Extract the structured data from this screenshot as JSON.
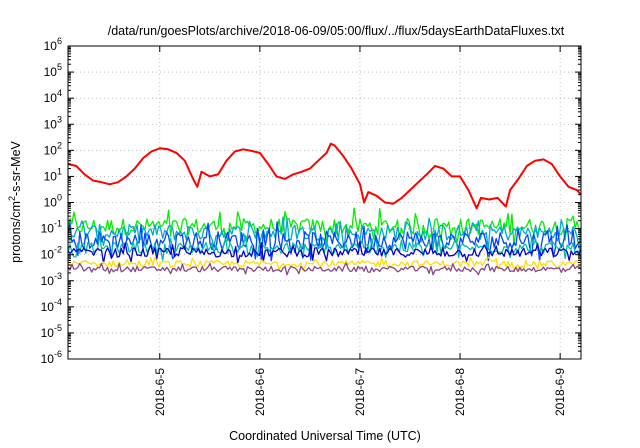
{
  "chart_data": {
    "type": "line",
    "title": "/data/run/goesPlots/archive/2018-06-09/05:00/flux/../flux/5daysEarthDataFluxes.txt",
    "xlabel": "Coordinated Universal Time (UTC)",
    "ylabel_main": "protons/cm",
    "ylabel_sup": "2",
    "ylabel_tail": "-s-sr-MeV",
    "y_scale": "log",
    "ylim": [
      1e-06,
      1000000.0
    ],
    "y_ticks": [
      {
        "base": "10",
        "exp": "-6"
      },
      {
        "base": "10",
        "exp": "-5"
      },
      {
        "base": "10",
        "exp": "-4"
      },
      {
        "base": "10",
        "exp": "-3"
      },
      {
        "base": "10",
        "exp": "-2"
      },
      {
        "base": "10",
        "exp": "-1"
      },
      {
        "base": "10",
        "exp": "0"
      },
      {
        "base": "10",
        "exp": "1"
      },
      {
        "base": "10",
        "exp": "2"
      },
      {
        "base": "10",
        "exp": "3"
      },
      {
        "base": "10",
        "exp": "4"
      },
      {
        "base": "10",
        "exp": "5"
      },
      {
        "base": "10",
        "exp": "6"
      }
    ],
    "xlim": [
      "2018-06-04 02:00",
      "2018-06-09 05:00"
    ],
    "x_ticks": [
      "2018-6-5",
      "2018-6-6",
      "2018-6-7",
      "2018-6-8",
      "2018-6-9"
    ],
    "x_tick_dates": [
      "2018-06-05 00:00",
      "2018-06-06 00:00",
      "2018-06-07 00:00",
      "2018-06-08 00:00",
      "2018-06-09 00:00"
    ],
    "grid": true,
    "legend": "none",
    "series": [
      {
        "color": "#ff0000",
        "values": [
          [
            "2018-06-04 02:00",
            30
          ],
          [
            "2018-06-04 04:00",
            25
          ],
          [
            "2018-06-04 06:00",
            12
          ],
          [
            "2018-06-04 08:00",
            7
          ],
          [
            "2018-06-04 10:00",
            6
          ],
          [
            "2018-06-04 12:00",
            5
          ],
          [
            "2018-06-04 14:00",
            6
          ],
          [
            "2018-06-04 16:00",
            10
          ],
          [
            "2018-06-04 18:00",
            20
          ],
          [
            "2018-06-04 20:00",
            50
          ],
          [
            "2018-06-04 22:00",
            90
          ],
          [
            "2018-06-05 00:00",
            120
          ],
          [
            "2018-06-05 02:00",
            110
          ],
          [
            "2018-06-05 04:00",
            80
          ],
          [
            "2018-06-05 06:00",
            40
          ],
          [
            "2018-06-05 08:00",
            8
          ],
          [
            "2018-06-05 09:00",
            4
          ],
          [
            "2018-06-05 10:00",
            15
          ],
          [
            "2018-06-05 12:00",
            10
          ],
          [
            "2018-06-05 14:00",
            12
          ],
          [
            "2018-06-05 16:00",
            40
          ],
          [
            "2018-06-05 18:00",
            90
          ],
          [
            "2018-06-05 20:00",
            110
          ],
          [
            "2018-06-05 22:00",
            95
          ],
          [
            "2018-06-06 00:00",
            80
          ],
          [
            "2018-06-06 02:00",
            30
          ],
          [
            "2018-06-06 04:00",
            10
          ],
          [
            "2018-06-06 06:00",
            8
          ],
          [
            "2018-06-06 08:00",
            12
          ],
          [
            "2018-06-06 10:00",
            15
          ],
          [
            "2018-06-06 12:00",
            20
          ],
          [
            "2018-06-06 14:00",
            40
          ],
          [
            "2018-06-06 16:00",
            80
          ],
          [
            "2018-06-06 17:00",
            180
          ],
          [
            "2018-06-06 18:00",
            150
          ],
          [
            "2018-06-06 20:00",
            60
          ],
          [
            "2018-06-06 22:00",
            20
          ],
          [
            "2018-06-07 00:00",
            5
          ],
          [
            "2018-06-07 01:00",
            1
          ],
          [
            "2018-06-07 02:00",
            2.5
          ],
          [
            "2018-06-07 04:00",
            1.8
          ],
          [
            "2018-06-07 06:00",
            1
          ],
          [
            "2018-06-07 08:00",
            0.9
          ],
          [
            "2018-06-07 10:00",
            1.5
          ],
          [
            "2018-06-07 12:00",
            3
          ],
          [
            "2018-06-07 14:00",
            6
          ],
          [
            "2018-06-07 16:00",
            12
          ],
          [
            "2018-06-07 18:00",
            25
          ],
          [
            "2018-06-07 20:00",
            20
          ],
          [
            "2018-06-07 22:00",
            10
          ],
          [
            "2018-06-08 00:00",
            10
          ],
          [
            "2018-06-08 02:00",
            3
          ],
          [
            "2018-06-08 04:00",
            0.6
          ],
          [
            "2018-06-08 05:00",
            1.5
          ],
          [
            "2018-06-08 07:00",
            1.3
          ],
          [
            "2018-06-08 09:00",
            1.5
          ],
          [
            "2018-06-08 11:00",
            0.7
          ],
          [
            "2018-06-08 12:00",
            3
          ],
          [
            "2018-06-08 14:00",
            8
          ],
          [
            "2018-06-08 16:00",
            25
          ],
          [
            "2018-06-08 18:00",
            40
          ],
          [
            "2018-06-08 20:00",
            45
          ],
          [
            "2018-06-08 22:00",
            30
          ],
          [
            "2018-06-09 00:00",
            10
          ],
          [
            "2018-06-09 02:00",
            4
          ],
          [
            "2018-06-09 04:00",
            3
          ],
          [
            "2018-06-09 05:00",
            2
          ]
        ]
      },
      {
        "color": "#00ee00",
        "level": 0.12,
        "noise": 0.9
      },
      {
        "color": "#00aacc",
        "level": 0.07,
        "noise": 0.9
      },
      {
        "color": "#0044ff",
        "level": 0.035,
        "noise": 1.0
      },
      {
        "color": "#00bbaa",
        "level": 0.018,
        "noise": 0.6
      },
      {
        "color": "#0000cc",
        "level": 0.012,
        "noise": 0.5
      },
      {
        "color": "#ffdd00",
        "level": 0.0045,
        "noise": 0.35
      },
      {
        "color": "#884488",
        "level": 0.0028,
        "noise": 0.3
      }
    ]
  }
}
